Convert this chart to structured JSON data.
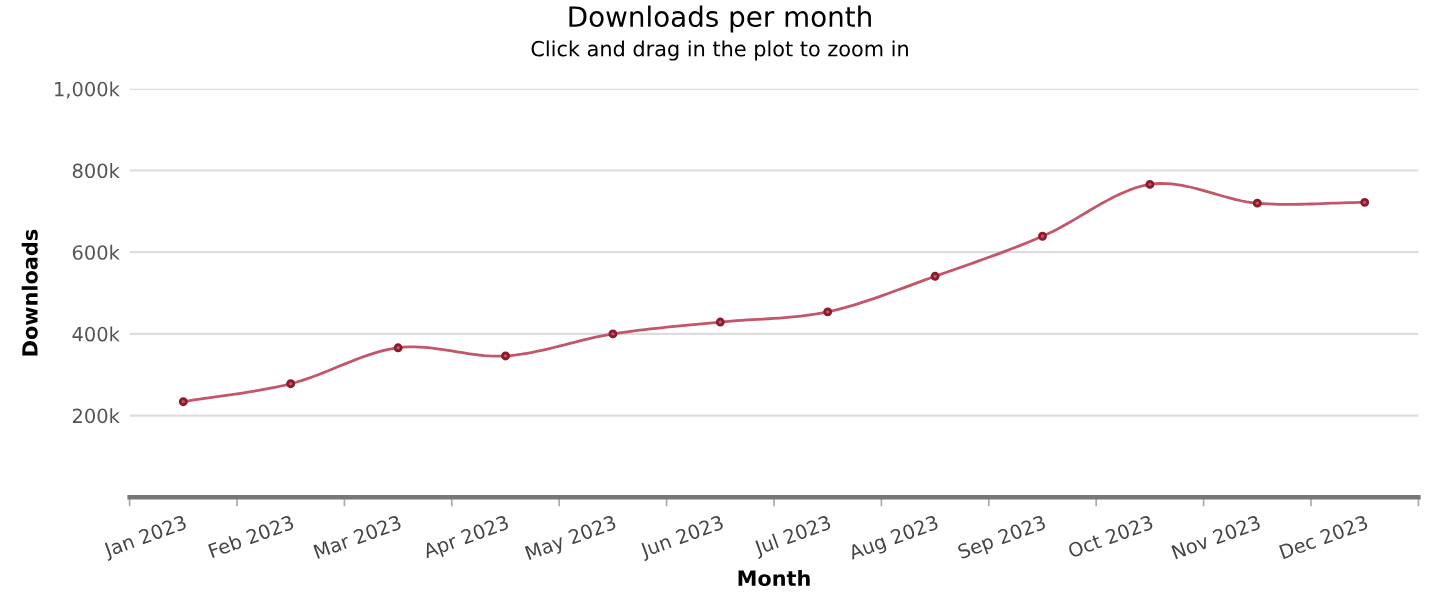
{
  "chart_data": {
    "type": "line",
    "title": "Downloads per month",
    "subtitle": "Click and drag in the plot to zoom in",
    "xlabel": "Month",
    "ylabel": "Downloads",
    "categories": [
      "Jan 2023",
      "Feb 2023",
      "Mar 2023",
      "Apr 2023",
      "May 2023",
      "Jun 2023",
      "Jul 2023",
      "Aug 2023",
      "Sep 2023",
      "Oct 2023",
      "Nov 2023",
      "Dec 2023"
    ],
    "series": [
      {
        "color": "#c4566a",
        "values": [
          234000,
          278000,
          366000,
          346000,
          400000,
          429000,
          454000,
          541000,
          639000,
          766000,
          720000,
          722000
        ]
      }
    ],
    "ylim": [
      0,
      1000000
    ],
    "yticks": [
      {
        "value": 200000,
        "label": "200k"
      },
      {
        "value": 400000,
        "label": "400k"
      },
      {
        "value": 600000,
        "label": "600k"
      },
      {
        "value": 800000,
        "label": "800k"
      },
      {
        "value": 1000000,
        "label": "1,000k"
      }
    ],
    "grid": "y",
    "legend": false,
    "marker": "circle",
    "line_style": "solid"
  }
}
